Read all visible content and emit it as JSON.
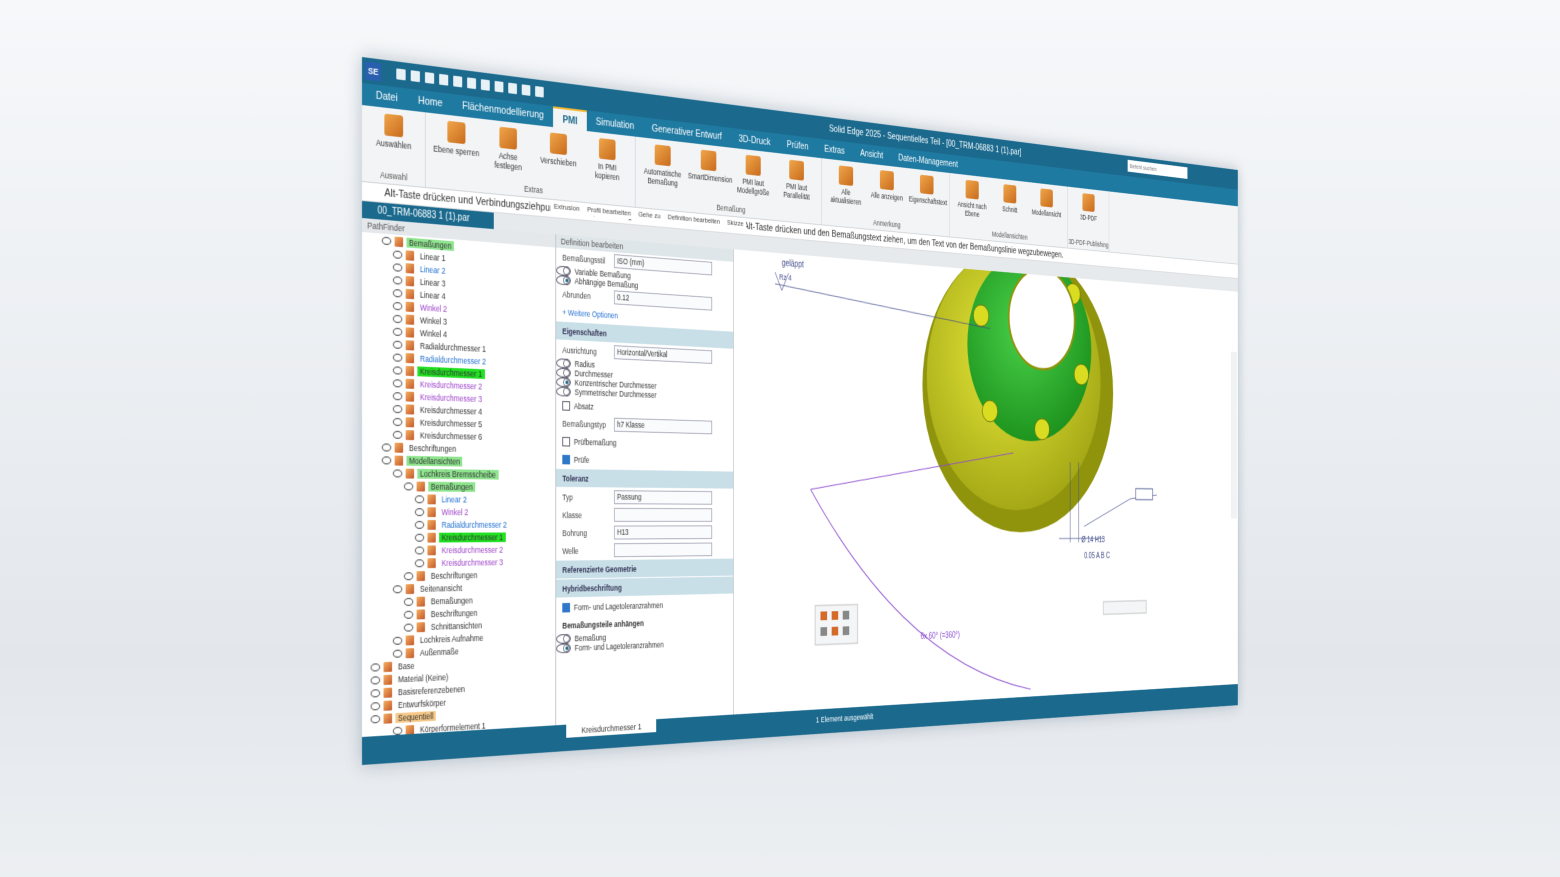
{
  "title_bar": {
    "logo": "SE",
    "title": "Solid Edge 2025 - Sequentielles Teil - [00_TRM-06883 1 (1).par]",
    "search": "Befehl suchen"
  },
  "tabs": [
    {
      "label": "Datei"
    },
    {
      "label": "Home"
    },
    {
      "label": "Flächenmodellierung"
    },
    {
      "label": "PMI",
      "active": true
    },
    {
      "label": "Simulation"
    },
    {
      "label": "Generativer Entwurf"
    },
    {
      "label": "3D-Druck"
    },
    {
      "label": "Prüfen"
    },
    {
      "label": "Extras"
    },
    {
      "label": "Ansicht"
    },
    {
      "label": "Daten-Management"
    }
  ],
  "ribbon": [
    {
      "name": "Auswahl",
      "buttons": [
        "Auswählen"
      ]
    },
    {
      "name": "Extras",
      "buttons": [
        "Ebene sperren",
        "Achse festlegen",
        "Verschieben",
        "In PMI kopieren"
      ]
    },
    {
      "name": "Bemaßung",
      "buttons": [
        "Automatische Bemaßung",
        "SmartDimension",
        "PMI laut Modellgröße",
        "PMI laut Parallelität"
      ]
    },
    {
      "name": "Anmerkung",
      "buttons": [
        "Alle aktualisieren",
        "Alle anzeigen",
        "Eigenschaftstext"
      ]
    },
    {
      "name": "Modellansichten",
      "buttons": [
        "Ansicht nach Ebene",
        "Schnitt",
        "Modellansicht"
      ]
    },
    {
      "name": "3D-PDF-Publishing",
      "buttons": [
        "3D-PDF"
      ]
    }
  ],
  "prompt": "Alt-Taste drücken und Verbindungsziehpunkte ziehen, um übergeordnete Geometrie zu ändern. Alt-Taste drücken und den Bemaßungstext ziehen, um den Text von der Bemaßungslinie wegzubewegen.",
  "command_bar": [
    "Extrusion",
    "Profil bearbeiten",
    "Gehe zu",
    "Definition bearbeiten",
    "Skizze"
  ],
  "document_tab": "00_TRM-06883 1 (1).par",
  "pathfinder": {
    "title": "PathFinder",
    "items": [
      {
        "label": "Bemaßungen",
        "depth": 1,
        "highlight": "#8fe58f"
      },
      {
        "label": "Linear 1",
        "depth": 2
      },
      {
        "label": "Linear 2",
        "depth": 2,
        "color": "#1f6fd0"
      },
      {
        "label": "Linear 3",
        "depth": 2
      },
      {
        "label": "Linear 4",
        "depth": 2
      },
      {
        "label": "Winkel 2",
        "depth": 2,
        "color": "#9b3fc8"
      },
      {
        "label": "Winkel 3",
        "depth": 2
      },
      {
        "label": "Winkel 4",
        "depth": 2
      },
      {
        "label": "Radialdurchmesser 1",
        "depth": 2
      },
      {
        "label": "Radialdurchmesser 2",
        "depth": 2,
        "color": "#1f6fd0"
      },
      {
        "label": "Kreisdurchmesser 1",
        "depth": 2,
        "highlight": "#22e022"
      },
      {
        "label": "Kreisdurchmesser 2",
        "depth": 2,
        "color": "#9b3fc8"
      },
      {
        "label": "Kreisdurchmesser 3",
        "depth": 2,
        "color": "#9b3fc8"
      },
      {
        "label": "Kreisdurchmesser 4",
        "depth": 2
      },
      {
        "label": "Kreisdurchmesser 5",
        "depth": 2
      },
      {
        "label": "Kreisdurchmesser 6",
        "depth": 2
      },
      {
        "label": "Beschriftungen",
        "depth": 1
      },
      {
        "label": "Modellansichten",
        "depth": 1,
        "highlight": "#8fe58f"
      },
      {
        "label": "Lochkreis Bremsscheibe",
        "depth": 2,
        "highlight": "#8fe58f"
      },
      {
        "label": "Bemaßungen",
        "depth": 3,
        "highlight": "#8fe58f"
      },
      {
        "label": "Linear 2",
        "depth": 4,
        "color": "#1f6fd0"
      },
      {
        "label": "Winkel 2",
        "depth": 4,
        "color": "#9b3fc8"
      },
      {
        "label": "Radialdurchmesser 2",
        "depth": 4,
        "color": "#1f6fd0"
      },
      {
        "label": "Kreisdurchmesser 1",
        "depth": 4,
        "highlight": "#22e022"
      },
      {
        "label": "Kreisdurchmesser 2",
        "depth": 4,
        "color": "#9b3fc8"
      },
      {
        "label": "Kreisdurchmesser 3",
        "depth": 4,
        "color": "#9b3fc8"
      },
      {
        "label": "Beschriftungen",
        "depth": 3
      },
      {
        "label": "Seitenansicht",
        "depth": 2
      },
      {
        "label": "Bemaßungen",
        "depth": 3
      },
      {
        "label": "Beschriftungen",
        "depth": 3
      },
      {
        "label": "Schnittansichten",
        "depth": 3
      },
      {
        "label": "Lochkreis Aufnahme",
        "depth": 2
      },
      {
        "label": "Außenmaße",
        "depth": 2
      },
      {
        "label": "Base",
        "depth": 0
      },
      {
        "label": "Material (Keine)",
        "depth": 0
      },
      {
        "label": "Basisreferenzebenen",
        "depth": 0
      },
      {
        "label": "Entwurfskörper",
        "depth": 0
      },
      {
        "label": "Sequentiell",
        "depth": 0,
        "highlight": "#f6c98a"
      },
      {
        "label": "Körperformelement 1",
        "depth": 2
      }
    ]
  },
  "definition_panel": {
    "title": "Definition bearbeiten",
    "rows": [
      {
        "kind": "field",
        "label": "Bemaßungsstil",
        "value": "ISO (mm)"
      },
      {
        "kind": "radio",
        "label": "Variable Bemaßung"
      },
      {
        "kind": "radio",
        "label": "Abhängige Bemaßung",
        "checked": true
      },
      {
        "kind": "field",
        "label": "Abrunden",
        "value": "0.12"
      },
      {
        "kind": "link",
        "label": "+ Weitere Optionen"
      },
      {
        "kind": "section",
        "label": "Eigenschaften"
      },
      {
        "kind": "field",
        "label": "Ausrichtung",
        "value": "Horizontal/Vertikal"
      },
      {
        "kind": "radio",
        "label": "Radius"
      },
      {
        "kind": "radio",
        "label": "Durchmesser"
      },
      {
        "kind": "radio",
        "label": "Konzentrischer Durchmesser",
        "checked": true
      },
      {
        "kind": "radio",
        "label": "Symmetrischer Durchmesser"
      },
      {
        "kind": "checkbox",
        "label": "Absatz"
      },
      {
        "kind": "field",
        "label": "Bemaßungstyp",
        "value": "h7 Klasse"
      },
      {
        "kind": "checkbox",
        "label": "Prüfbemaßung"
      },
      {
        "kind": "checkbox",
        "label": "Prüfe",
        "checked": true
      },
      {
        "kind": "section",
        "label": "Toleranz"
      },
      {
        "kind": "field",
        "label": "Typ",
        "value": "Passung"
      },
      {
        "kind": "field",
        "label": "Klasse"
      },
      {
        "kind": "field",
        "label": "Bohrung",
        "value": "H13"
      },
      {
        "kind": "field",
        "label": "Welle"
      },
      {
        "kind": "section",
        "label": "Referenzierte Geometrie"
      },
      {
        "kind": "section",
        "label": "Hybridbeschriftung"
      },
      {
        "kind": "checkbox",
        "label": "Form- und Lagetoleranzrahmen",
        "checked": true
      },
      {
        "kind": "heading",
        "label": "Bemaßungsteile anhängen"
      },
      {
        "kind": "radio",
        "label": "Bemaßung"
      },
      {
        "kind": "radio",
        "label": "Form- und Lagetoleranzrahmen",
        "checked": true
      }
    ],
    "bottom_tab": "Kreisdurchmesser 1"
  },
  "viewport": {
    "annotations": [
      "geläppt",
      "Rz 4",
      "Ø 14 H13",
      "0.05 A B C",
      "6x 60° (=360°)"
    ]
  },
  "status_bar": {
    "text": "1 Element ausgewählt"
  }
}
